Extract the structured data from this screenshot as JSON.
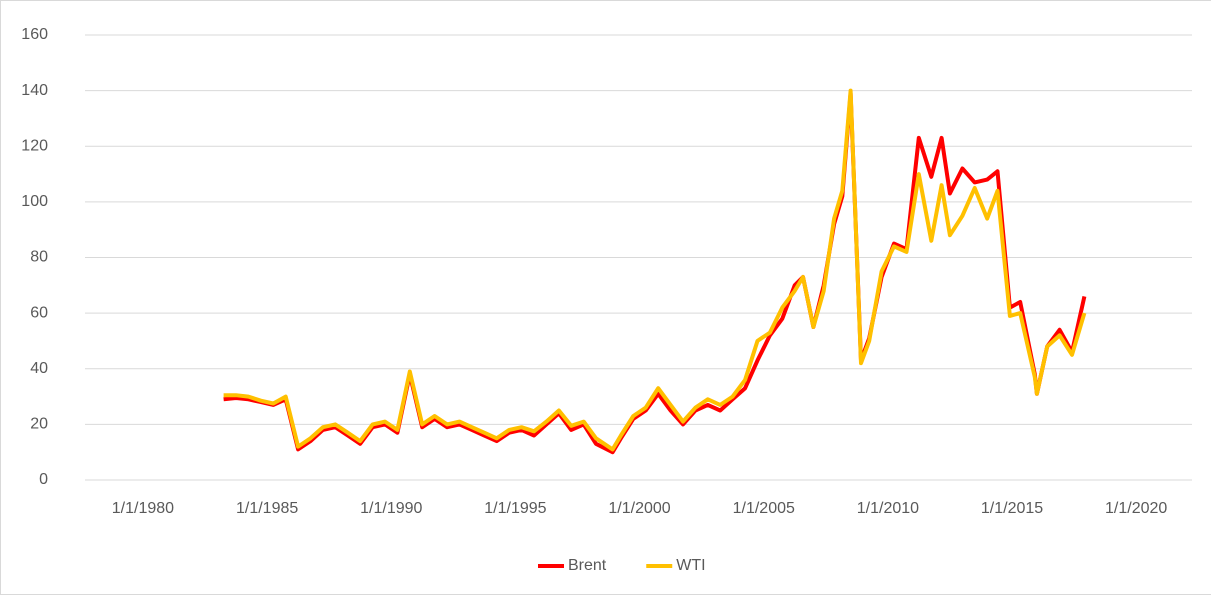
{
  "chart_data": {
    "type": "line",
    "x": [
      "1983-04-01",
      "1983-10-01",
      "1984-04-01",
      "1984-10-01",
      "1985-04-01",
      "1985-10-01",
      "1986-04-01",
      "1986-10-01",
      "1987-04-01",
      "1987-10-01",
      "1988-04-01",
      "1988-10-01",
      "1989-04-01",
      "1989-10-01",
      "1990-04-01",
      "1990-10-01",
      "1991-04-01",
      "1991-10-01",
      "1992-04-01",
      "1992-10-01",
      "1993-04-01",
      "1993-10-01",
      "1994-04-01",
      "1994-10-01",
      "1995-04-01",
      "1995-10-01",
      "1996-04-01",
      "1996-10-01",
      "1997-04-01",
      "1997-10-01",
      "1998-04-01",
      "1998-12-01",
      "1999-04-01",
      "1999-10-01",
      "2000-04-01",
      "2000-10-01",
      "2001-04-01",
      "2001-10-01",
      "2002-04-01",
      "2002-10-01",
      "2003-04-01",
      "2003-10-01",
      "2004-04-01",
      "2004-10-01",
      "2005-04-01",
      "2005-10-01",
      "2006-04-01",
      "2006-08-01",
      "2007-01-01",
      "2007-06-01",
      "2007-11-01",
      "2008-03-01",
      "2008-07-01",
      "2008-12-01",
      "2009-04-01",
      "2009-10-01",
      "2010-04-01",
      "2010-10-01",
      "2011-04-01",
      "2011-10-01",
      "2012-03-01",
      "2012-07-01",
      "2013-01-01",
      "2013-07-01",
      "2014-01-01",
      "2014-06-01",
      "2014-12-01",
      "2015-05-01",
      "2015-12-01",
      "2016-01-01",
      "2016-06-01",
      "2016-12-01",
      "2017-06-01",
      "2017-12-01"
    ],
    "series": [
      {
        "name": "Brent",
        "color": "#ff0000",
        "values": [
          29,
          29.5,
          29,
          28,
          27,
          29,
          11,
          14,
          18,
          19,
          16,
          13,
          19,
          20,
          17,
          38,
          19,
          22,
          19,
          20,
          18,
          16,
          14,
          17,
          18,
          16,
          20,
          24,
          18,
          20,
          13,
          10,
          15,
          22,
          25,
          31,
          25,
          20,
          25,
          27,
          25,
          29,
          33,
          43,
          52,
          58,
          70,
          73,
          55,
          70,
          92,
          102,
          139,
          43,
          51,
          73,
          85,
          83,
          123,
          109,
          123,
          103,
          112,
          107,
          108,
          111,
          62,
          64,
          38,
          31,
          48,
          54,
          46,
          66
        ]
      },
      {
        "name": "WTI",
        "color": "#ffc000",
        "values": [
          30.5,
          30.5,
          30,
          28.5,
          27.5,
          30,
          12,
          15,
          19,
          20,
          17,
          14,
          20,
          21,
          18,
          39,
          20,
          23,
          20,
          21,
          19,
          17,
          15,
          18,
          19,
          17.5,
          21,
          25,
          19.5,
          21,
          15,
          11,
          16,
          23,
          26,
          33,
          27,
          21,
          26,
          29,
          27,
          30,
          36,
          50,
          53,
          62,
          68,
          73,
          55,
          68,
          94,
          104,
          140,
          42,
          50,
          75,
          84,
          82,
          110,
          86,
          106,
          88,
          95,
          105,
          94,
          104,
          59,
          60,
          37,
          31,
          48,
          52,
          45,
          60
        ]
      }
    ],
    "xlim": [
      "1977-09-01",
      "2022-04-01"
    ],
    "xticks": [
      {
        "value": "1980-01-01",
        "label": "1/1/1980"
      },
      {
        "value": "1985-01-01",
        "label": "1/1/1985"
      },
      {
        "value": "1990-01-01",
        "label": "1/1/1990"
      },
      {
        "value": "1995-01-01",
        "label": "1/1/1995"
      },
      {
        "value": "2000-01-01",
        "label": "1/1/2000"
      },
      {
        "value": "2005-01-01",
        "label": "1/1/2005"
      },
      {
        "value": "2010-01-01",
        "label": "1/1/2010"
      },
      {
        "value": "2015-01-01",
        "label": "1/1/2015"
      },
      {
        "value": "2020-01-01",
        "label": "1/1/2020"
      }
    ],
    "ylim": [
      0,
      160
    ],
    "yticks": [
      0,
      20,
      40,
      60,
      80,
      100,
      120,
      140,
      160
    ],
    "grid": true,
    "legend": "bottom"
  }
}
